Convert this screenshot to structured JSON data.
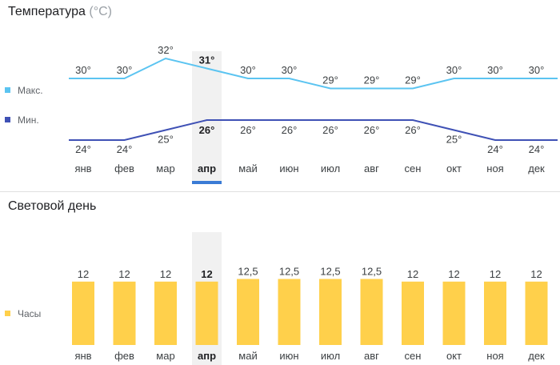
{
  "temperature": {
    "title": "Температура",
    "unit": "(°C)"
  },
  "daylight": {
    "title": "Световой день"
  },
  "selected_index": 3,
  "colors": {
    "max": "#5bc4f1",
    "min": "#3f51b5",
    "bar": "#ffd04b",
    "highlight": "#f1f1f1",
    "selector": "#3a7bd5"
  },
  "chart_data": [
    {
      "type": "line",
      "categories": [
        "янв",
        "фев",
        "мар",
        "апр",
        "май",
        "июн",
        "июл",
        "авг",
        "сен",
        "окт",
        "ноя",
        "дек"
      ],
      "series": [
        {
          "name": "Макс.",
          "values": [
            30,
            30,
            32,
            31,
            30,
            30,
            29,
            29,
            29,
            30,
            30,
            30
          ],
          "labels": [
            "30°",
            "30°",
            "32°",
            "31°",
            "30°",
            "30°",
            "29°",
            "29°",
            "29°",
            "30°",
            "30°",
            "30°"
          ]
        },
        {
          "name": "Мин.",
          "values": [
            24,
            24,
            25,
            26,
            26,
            26,
            26,
            26,
            26,
            25,
            24,
            24
          ],
          "labels": [
            "24°",
            "24°",
            "25°",
            "26°",
            "26°",
            "26°",
            "26°",
            "26°",
            "26°",
            "25°",
            "24°",
            "24°"
          ]
        }
      ],
      "title": "Температура (°C)",
      "legend": "left"
    },
    {
      "type": "bar",
      "categories": [
        "янв",
        "фев",
        "мар",
        "апр",
        "май",
        "июн",
        "июл",
        "авг",
        "сен",
        "окт",
        "ноя",
        "дек"
      ],
      "series": [
        {
          "name": "Часы",
          "values": [
            12,
            12,
            12,
            12,
            12.5,
            12.5,
            12.5,
            12.5,
            12,
            12,
            12,
            12
          ],
          "labels": [
            "12",
            "12",
            "12",
            "12",
            "12,5",
            "12,5",
            "12,5",
            "12,5",
            "12",
            "12",
            "12",
            "12"
          ]
        }
      ],
      "title": "Световой день",
      "legend": "left"
    }
  ]
}
